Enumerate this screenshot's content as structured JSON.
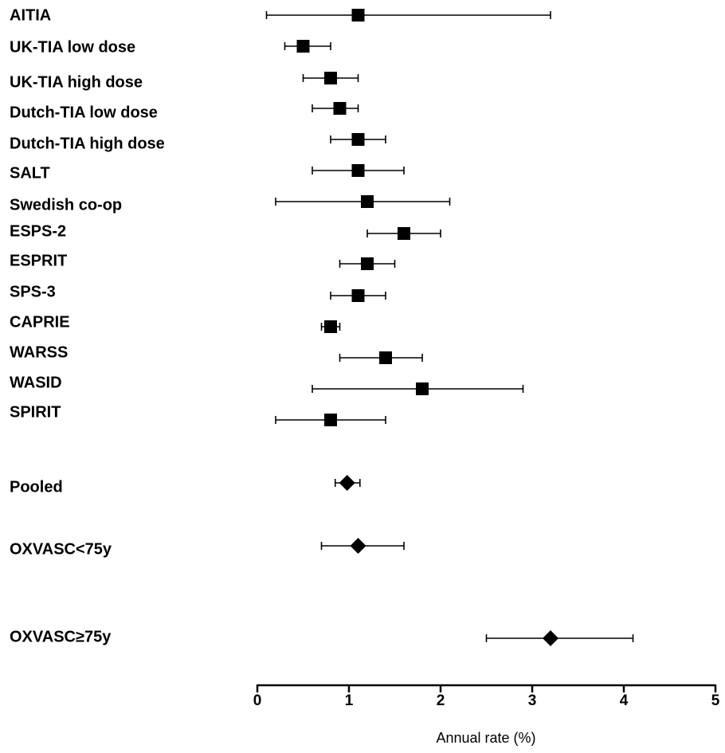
{
  "chart_data": {
    "type": "forest",
    "x_label": "Annual rate (%)",
    "xlim": [
      0,
      5
    ],
    "xticks": [
      0,
      1,
      2,
      3,
      4,
      5
    ],
    "color": "#000000",
    "rows": [
      {
        "name": "AITIA",
        "value": 1.1,
        "lower": 0.1,
        "upper": 3.2,
        "marker": "square"
      },
      {
        "name": "UK-TIA low dose",
        "value": 0.5,
        "lower": 0.3,
        "upper": 0.8,
        "marker": "square"
      },
      {
        "name": "UK-TIA high dose",
        "value": 0.8,
        "lower": 0.5,
        "upper": 1.1,
        "marker": "square"
      },
      {
        "name": "Dutch-TIA low dose",
        "value": 0.9,
        "lower": 0.6,
        "upper": 1.1,
        "marker": "square"
      },
      {
        "name": "Dutch-TIA high dose",
        "value": 1.1,
        "lower": 0.8,
        "upper": 1.4,
        "marker": "square"
      },
      {
        "name": "SALT",
        "value": 1.1,
        "lower": 0.6,
        "upper": 1.6,
        "marker": "square"
      },
      {
        "name": "Swedish co-op",
        "value": 1.2,
        "lower": 0.2,
        "upper": 2.1,
        "marker": "square"
      },
      {
        "name": "ESPS-2",
        "value": 1.6,
        "lower": 1.2,
        "upper": 2.0,
        "marker": "square"
      },
      {
        "name": "ESPRIT",
        "value": 1.2,
        "lower": 0.9,
        "upper": 1.5,
        "marker": "square"
      },
      {
        "name": "SPS-3",
        "value": 1.1,
        "lower": 0.8,
        "upper": 1.4,
        "marker": "square"
      },
      {
        "name": "CAPRIE",
        "value": 0.8,
        "lower": 0.7,
        "upper": 0.9,
        "marker": "square"
      },
      {
        "name": "WARSS",
        "value": 1.4,
        "lower": 0.9,
        "upper": 1.8,
        "marker": "square"
      },
      {
        "name": "WASID",
        "value": 1.8,
        "lower": 0.6,
        "upper": 2.9,
        "marker": "square"
      },
      {
        "name": "SPIRIT",
        "value": 0.8,
        "lower": 0.2,
        "upper": 1.4,
        "marker": "square"
      },
      {
        "name": "Pooled",
        "value": 0.98,
        "lower": 0.85,
        "upper": 1.12,
        "marker": "diamond"
      },
      {
        "name": "OXVASC<75y",
        "value": 1.1,
        "lower": 0.7,
        "upper": 1.6,
        "marker": "diamond"
      },
      {
        "name": "OXVASC≥75y",
        "value": 3.2,
        "lower": 2.5,
        "upper": 4.1,
        "marker": "diamond"
      }
    ]
  }
}
